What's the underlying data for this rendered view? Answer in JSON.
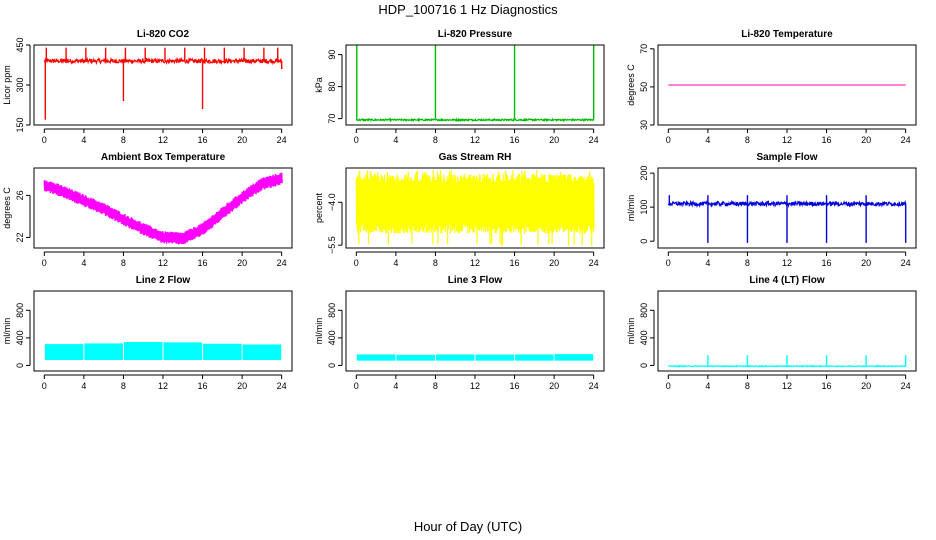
{
  "figure": {
    "title": "HDP_100716  1 Hz Diagnostics",
    "xlabel": "Hour of Day (UTC)"
  },
  "chart_data": [
    {
      "id": "co2",
      "type": "line",
      "title": "Li-820 CO2",
      "ylabel": "Licor ppm",
      "xlim": [
        0,
        24
      ],
      "xticks": [
        0,
        4,
        8,
        12,
        16,
        20,
        24
      ],
      "ylim": [
        150,
        450
      ],
      "yticks": [
        150,
        300,
        450
      ],
      "ytick_labels": [
        "150",
        "300",
        "450"
      ],
      "color": "#ff0000",
      "pattern": {
        "kind": "baseline_spikes",
        "base": 390,
        "noise": 8,
        "up_spikes": [
          0.2,
          2.2,
          4.2,
          6.2,
          8.2,
          10.2,
          12.2,
          14.2,
          16.2,
          18.2,
          20.2,
          22.2,
          23.6
        ],
        "up_value": 440,
        "down_spikes": [
          [
            0.1,
            170
          ],
          [
            8.0,
            240
          ],
          [
            16.0,
            210
          ],
          [
            24.0,
            360
          ]
        ]
      }
    },
    {
      "id": "pressure",
      "type": "line",
      "title": "Li-820 Pressure",
      "ylabel": "kPa",
      "xlim": [
        0,
        24
      ],
      "xticks": [
        0,
        4,
        8,
        12,
        16,
        20,
        24
      ],
      "ylim": [
        68,
        93
      ],
      "yticks": [
        70,
        80,
        90
      ],
      "ytick_labels": [
        "70",
        "80",
        "90"
      ],
      "color": "#00bb00",
      "pattern": {
        "kind": "baseline_spikes",
        "base": 69.6,
        "noise": 0.25,
        "up_spikes": [
          0.05,
          8.0,
          16.0,
          24.0
        ],
        "up_value": 93,
        "down_spikes": []
      }
    },
    {
      "id": "temp",
      "type": "line",
      "title": "Li-820 Temperature",
      "ylabel": "degrees C",
      "xlim": [
        0,
        24
      ],
      "xticks": [
        0,
        4,
        8,
        12,
        16,
        20,
        24
      ],
      "ylim": [
        30,
        72
      ],
      "yticks": [
        30,
        50,
        70
      ],
      "ytick_labels": [
        "30",
        "50",
        "70"
      ],
      "color": "#ff00aa",
      "pattern": {
        "kind": "flat",
        "value": 51
      }
    },
    {
      "id": "ambient",
      "type": "line",
      "title": "Ambient Box Temperature",
      "ylabel": "degrees C",
      "xlim": [
        0,
        24
      ],
      "xticks": [
        0,
        4,
        8,
        12,
        16,
        20,
        24
      ],
      "ylim": [
        21,
        28.6
      ],
      "yticks": [
        22,
        26
      ],
      "ytick_labels": [
        "22",
        "26"
      ],
      "color": "#ff00ff",
      "pattern": {
        "kind": "band_curve",
        "centers": [
          [
            0,
            27.0
          ],
          [
            2,
            26.3
          ],
          [
            4,
            25.5
          ],
          [
            6,
            24.7
          ],
          [
            8,
            23.7
          ],
          [
            10,
            22.8
          ],
          [
            12,
            22.0
          ],
          [
            14,
            21.9
          ],
          [
            16,
            22.8
          ],
          [
            18,
            24.3
          ],
          [
            20,
            25.8
          ],
          [
            22,
            27.1
          ],
          [
            24,
            27.6
          ]
        ],
        "halfwidth": 0.6
      }
    },
    {
      "id": "rh",
      "type": "line",
      "title": "Gas Stream RH",
      "ylabel": "percent",
      "xlim": [
        0,
        24
      ],
      "xticks": [
        0,
        4,
        8,
        12,
        16,
        20,
        24
      ],
      "ylim": [
        -5.6,
        -2.8
      ],
      "yticks": [
        -5.5,
        -4.0
      ],
      "ytick_labels": [
        "−5.5",
        "−4.0"
      ],
      "color": "#ffff00",
      "pattern": {
        "kind": "noise_band",
        "lo": -5.1,
        "hi": -3.0,
        "extreme_lo": -5.55,
        "extreme_hi": -2.95
      }
    },
    {
      "id": "sample",
      "type": "line",
      "title": "Sample Flow",
      "ylabel": "ml/min",
      "xlim": [
        0,
        24
      ],
      "xticks": [
        0,
        4,
        8,
        12,
        16,
        20,
        24
      ],
      "ylim": [
        -20,
        215
      ],
      "yticks": [
        0,
        100,
        200
      ],
      "ytick_labels": [
        "0",
        "100",
        "200"
      ],
      "color": "#0000dd",
      "pattern": {
        "kind": "baseline_spikes",
        "base": 110,
        "noise": 6,
        "up_spikes": [
          0.1,
          4.0,
          8.0,
          12.0,
          16.0,
          20.0
        ],
        "up_value": 135,
        "down_spikes": [
          [
            4.0,
            -5
          ],
          [
            8.0,
            -5
          ],
          [
            12.0,
            -5
          ],
          [
            16.0,
            -5
          ],
          [
            20.0,
            -5
          ],
          [
            24.0,
            -5
          ]
        ]
      }
    },
    {
      "id": "line2",
      "type": "line",
      "title": "Line 2 Flow",
      "ylabel": "ml/min",
      "xlim": [
        0,
        24
      ],
      "xticks": [
        0,
        4,
        8,
        12,
        16,
        20,
        24
      ],
      "ylim": [
        -80,
        1080
      ],
      "yticks": [
        0,
        400,
        800
      ],
      "ytick_labels": [
        "0",
        "400",
        "800"
      ],
      "color": "#00ffff",
      "pattern": {
        "kind": "block_band",
        "lo": 80,
        "hi": 320,
        "gaps": [
          4.0,
          8.0,
          12.0,
          16.0,
          20.0
        ],
        "segments": [
          [
            0,
            4,
            310
          ],
          [
            4,
            8,
            320
          ],
          [
            8,
            12,
            340
          ],
          [
            12,
            16,
            335
          ],
          [
            16,
            20,
            315
          ],
          [
            20,
            24,
            305
          ]
        ]
      }
    },
    {
      "id": "line3",
      "type": "line",
      "title": "Line 3 Flow",
      "ylabel": "ml/min",
      "xlim": [
        0,
        24
      ],
      "xticks": [
        0,
        4,
        8,
        12,
        16,
        20,
        24
      ],
      "ylim": [
        -80,
        1080
      ],
      "yticks": [
        0,
        400,
        800
      ],
      "ytick_labels": [
        "0",
        "400",
        "800"
      ],
      "color": "#00ffff",
      "pattern": {
        "kind": "block_band",
        "lo": 70,
        "hi": 160,
        "gaps": [
          4.0,
          8.0,
          12.0,
          16.0,
          20.0
        ],
        "segments": [
          [
            0,
            4,
            160
          ],
          [
            4,
            8,
            155
          ],
          [
            8,
            12,
            160
          ],
          [
            12,
            16,
            158
          ],
          [
            16,
            20,
            160
          ],
          [
            20,
            24,
            165
          ]
        ]
      }
    },
    {
      "id": "line4",
      "type": "line",
      "title": "Line 4 (LT) Flow",
      "ylabel": "ml/min",
      "xlim": [
        0,
        24
      ],
      "xticks": [
        0,
        4,
        8,
        12,
        16,
        20,
        24
      ],
      "ylim": [
        -80,
        1080
      ],
      "yticks": [
        0,
        400,
        800
      ],
      "ytick_labels": [
        "0",
        "400",
        "800"
      ],
      "color": "#00ffff",
      "pattern": {
        "kind": "baseline_spikes",
        "base": -10,
        "noise": 6,
        "up_spikes": [
          4.0,
          8.0,
          12.0,
          16.0,
          20.0,
          24.0
        ],
        "up_value": 150,
        "down_spikes": []
      }
    }
  ]
}
